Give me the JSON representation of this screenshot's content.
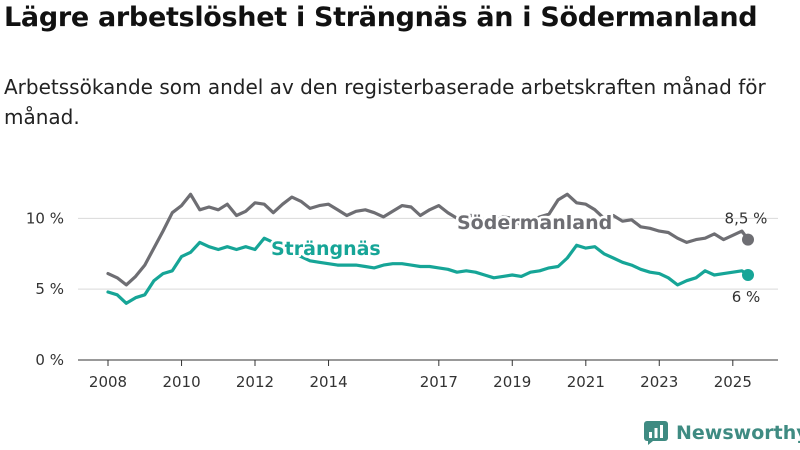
{
  "header": {
    "title": "Lägre arbetslöshet i Strängnäs än i Södermanland",
    "subtitle": "Arbetssökande som andel av den registerbaserade arbetskraften månad för månad."
  },
  "brand": {
    "name": "Newsworthy",
    "icon": "newsworthy-logo-icon",
    "color": "#3f8b82"
  },
  "chart_data": {
    "type": "line",
    "title": "Lägre arbetslöshet i Strängnäs än i Södermanland",
    "subtitle": "Arbetssökande som andel av den registerbaserade arbetskraften månad för månad.",
    "xlabel": "",
    "ylabel": "",
    "xlim": [
      "2008-01",
      "2025-06"
    ],
    "ylim": [
      0,
      12
    ],
    "yticks": [
      0,
      5,
      10
    ],
    "ytick_labels": [
      "0 %",
      "5 %",
      "10 %"
    ],
    "xticks": [
      "2008",
      "2010",
      "2012",
      "2014",
      "2017",
      "2019",
      "2021",
      "2023",
      "2025"
    ],
    "grid": true,
    "legend": "inline labels",
    "series": [
      {
        "name": "Södermanland",
        "color": "#6e6e73",
        "end_label": "8,5 %",
        "x": [
          "2008-01",
          "2008-04",
          "2008-07",
          "2008-10",
          "2009-01",
          "2009-04",
          "2009-07",
          "2009-10",
          "2010-01",
          "2010-04",
          "2010-07",
          "2010-10",
          "2011-01",
          "2011-04",
          "2011-07",
          "2011-10",
          "2012-01",
          "2012-04",
          "2012-07",
          "2012-10",
          "2013-01",
          "2013-04",
          "2013-07",
          "2013-10",
          "2014-01",
          "2014-04",
          "2014-07",
          "2014-10",
          "2015-01",
          "2015-04",
          "2015-07",
          "2015-10",
          "2016-01",
          "2016-04",
          "2016-07",
          "2016-10",
          "2017-01",
          "2017-04",
          "2017-07",
          "2017-10",
          "2018-01",
          "2018-04",
          "2018-07",
          "2018-10",
          "2019-01",
          "2019-04",
          "2019-07",
          "2019-10",
          "2020-01",
          "2020-04",
          "2020-07",
          "2020-10",
          "2021-01",
          "2021-04",
          "2021-07",
          "2021-10",
          "2022-01",
          "2022-04",
          "2022-07",
          "2022-10",
          "2023-01",
          "2023-04",
          "2023-07",
          "2023-10",
          "2024-01",
          "2024-04",
          "2024-07",
          "2024-10",
          "2025-01",
          "2025-04",
          "2025-06"
        ],
        "values": [
          6.1,
          5.8,
          5.3,
          5.9,
          6.7,
          7.9,
          9.1,
          10.4,
          10.9,
          11.7,
          10.6,
          10.8,
          10.6,
          11.0,
          10.2,
          10.5,
          11.1,
          11.0,
          10.4,
          11.0,
          11.5,
          11.2,
          10.7,
          10.9,
          11.0,
          10.6,
          10.2,
          10.5,
          10.6,
          10.4,
          10.1,
          10.5,
          10.9,
          10.8,
          10.2,
          10.6,
          10.9,
          10.4,
          10.0,
          10.2,
          10.2,
          9.6,
          9.8,
          10.1,
          10.0,
          9.5,
          9.8,
          10.1,
          10.3,
          11.3,
          11.7,
          11.1,
          11.0,
          10.6,
          10.0,
          10.2,
          9.8,
          9.9,
          9.4,
          9.3,
          9.1,
          9.0,
          8.6,
          8.3,
          8.5,
          8.6,
          8.9,
          8.5,
          8.8,
          9.1,
          8.5
        ]
      },
      {
        "name": "Strängnäs",
        "color": "#16a597",
        "end_label": "6 %",
        "x": [
          "2008-01",
          "2008-04",
          "2008-07",
          "2008-10",
          "2009-01",
          "2009-04",
          "2009-07",
          "2009-10",
          "2010-01",
          "2010-04",
          "2010-07",
          "2010-10",
          "2011-01",
          "2011-04",
          "2011-07",
          "2011-10",
          "2012-01",
          "2012-04",
          "2012-07",
          "2012-10",
          "2013-01",
          "2013-04",
          "2013-07",
          "2013-10",
          "2014-01",
          "2014-04",
          "2014-07",
          "2014-10",
          "2015-01",
          "2015-04",
          "2015-07",
          "2015-10",
          "2016-01",
          "2016-04",
          "2016-07",
          "2016-10",
          "2017-01",
          "2017-04",
          "2017-07",
          "2017-10",
          "2018-01",
          "2018-04",
          "2018-07",
          "2018-10",
          "2019-01",
          "2019-04",
          "2019-07",
          "2019-10",
          "2020-01",
          "2020-04",
          "2020-07",
          "2020-10",
          "2021-01",
          "2021-04",
          "2021-07",
          "2021-10",
          "2022-01",
          "2022-04",
          "2022-07",
          "2022-10",
          "2023-01",
          "2023-04",
          "2023-07",
          "2023-10",
          "2024-01",
          "2024-04",
          "2024-07",
          "2024-10",
          "2025-01",
          "2025-04",
          "2025-06"
        ],
        "values": [
          4.8,
          4.6,
          4.0,
          4.4,
          4.6,
          5.6,
          6.1,
          6.3,
          7.3,
          7.6,
          8.3,
          8.0,
          7.8,
          8.0,
          7.8,
          8.0,
          7.8,
          8.6,
          8.3,
          7.6,
          7.5,
          7.3,
          7.0,
          6.9,
          6.8,
          6.7,
          6.7,
          6.7,
          6.6,
          6.5,
          6.7,
          6.8,
          6.8,
          6.7,
          6.6,
          6.6,
          6.5,
          6.4,
          6.2,
          6.3,
          6.2,
          6.0,
          5.8,
          5.9,
          6.0,
          5.9,
          6.2,
          6.3,
          6.5,
          6.6,
          7.2,
          8.1,
          7.9,
          8.0,
          7.5,
          7.2,
          6.9,
          6.7,
          6.4,
          6.2,
          6.1,
          5.8,
          5.3,
          5.6,
          5.8,
          6.3,
          6.0,
          6.1,
          6.2,
          6.3,
          6.0
        ]
      }
    ]
  }
}
